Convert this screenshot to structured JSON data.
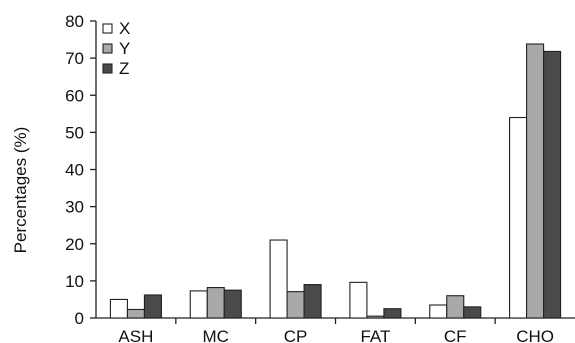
{
  "chart_data": {
    "type": "bar",
    "title": "",
    "xlabel": "",
    "ylabel": "Percentages (%)",
    "ylim": [
      0,
      80
    ],
    "yticks": [
      0,
      10,
      20,
      30,
      40,
      50,
      60,
      70,
      80
    ],
    "grid": false,
    "legend_position": "top-left",
    "categories": [
      "ASH",
      "MC",
      "CP",
      "FAT",
      "CF",
      "CHO"
    ],
    "series": [
      {
        "name": "X",
        "color": "#ffffff",
        "values": [
          5.0,
          7.3,
          21.0,
          9.6,
          3.5,
          54.0
        ]
      },
      {
        "name": "Y",
        "color": "#a9a9a9",
        "values": [
          2.3,
          8.2,
          7.1,
          0.5,
          6.0,
          73.8
        ]
      },
      {
        "name": "Z",
        "color": "#4a4a4a",
        "values": [
          6.2,
          7.5,
          9.0,
          2.5,
          3.0,
          71.8
        ]
      }
    ]
  }
}
